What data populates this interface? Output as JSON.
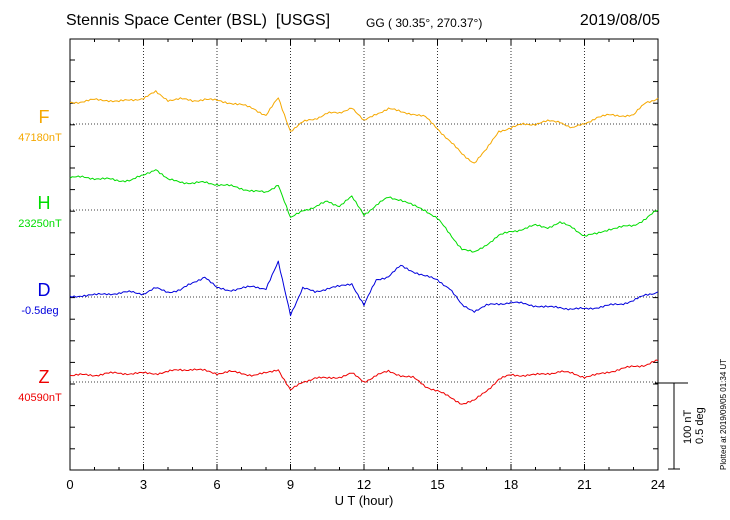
{
  "header": {
    "station": "Stennis Space Center (BSL)",
    "agency": "[USGS]",
    "coords": "GG ( 30.35°, 270.37°)",
    "date": "2019/08/05"
  },
  "footer": {
    "plotted": "Plotted at 2019/09/05 01:34 UT"
  },
  "chart_data": {
    "type": "line",
    "xlabel": "U T (hour)",
    "xlim": [
      0,
      24
    ],
    "x_ticks": [
      "0",
      "3",
      "6",
      "9",
      "12",
      "15",
      "18",
      "21",
      "24"
    ],
    "scale": {
      "nT": "100 nT",
      "deg": "0.5 deg"
    },
    "x": [
      0,
      0.5,
      1,
      1.5,
      2,
      2.5,
      3,
      3.5,
      4,
      4.5,
      5,
      5.5,
      6,
      6.5,
      7,
      7.5,
      8,
      8.5,
      9,
      9.5,
      10,
      10.5,
      11,
      11.5,
      12,
      12.5,
      13,
      13.5,
      14,
      14.5,
      15,
      15.5,
      16,
      16.5,
      17,
      17.5,
      18,
      18.5,
      19,
      19.5,
      20,
      20.5,
      21,
      21.5,
      22,
      22.5,
      23,
      23.5,
      24
    ],
    "series": [
      {
        "name": "F",
        "baseline": "47180nT",
        "color": "#f5a800",
        "values": [
          25,
          26,
          28,
          28,
          26,
          28,
          30,
          37,
          28,
          29,
          27,
          29,
          27,
          25,
          22,
          18,
          10,
          30,
          -8,
          2,
          6,
          13,
          12,
          20,
          3,
          12,
          18,
          14,
          12,
          8,
          -5,
          -20,
          -35,
          -45,
          -30,
          -8,
          -5,
          0,
          0,
          3,
          3,
          -5,
          0,
          8,
          10,
          10,
          10,
          25,
          30
        ]
      },
      {
        "name": "H",
        "baseline": "23250nT",
        "color": "#00dd00",
        "values": [
          38,
          38,
          37,
          36,
          34,
          35,
          40,
          48,
          35,
          33,
          31,
          32,
          30,
          28,
          25,
          22,
          20,
          30,
          -10,
          0,
          3,
          10,
          5,
          15,
          -5,
          5,
          15,
          12,
          5,
          0,
          -10,
          -28,
          -45,
          -50,
          -40,
          -30,
          -25,
          -22,
          -18,
          -20,
          -15,
          -20,
          -30,
          -28,
          -22,
          -20,
          -18,
          -10,
          0
        ]
      },
      {
        "name": "D",
        "unit": "deg",
        "baseline": "-0.5deg",
        "color": "#0000dd",
        "values": [
          0,
          0.01,
          0.01,
          0.02,
          0.02,
          0.03,
          0.02,
          0.05,
          0.03,
          0.04,
          0.08,
          0.12,
          0.05,
          0.04,
          0.05,
          0.06,
          0.05,
          0.2,
          -0.1,
          0.05,
          0.03,
          0.05,
          0.06,
          0.08,
          -0.05,
          0.1,
          0.12,
          0.18,
          0.15,
          0.12,
          0.1,
          0.05,
          -0.05,
          -0.08,
          -0.05,
          -0.04,
          -0.03,
          -0.04,
          -0.05,
          -0.06,
          -0.06,
          -0.07,
          -0.07,
          -0.06,
          -0.05,
          -0.04,
          -0.02,
          0.01,
          0.03
        ]
      },
      {
        "name": "Z",
        "baseline": "40590nT",
        "color": "#ee0000",
        "values": [
          8,
          8,
          8,
          10,
          10,
          10,
          10,
          10,
          12,
          14,
          15,
          13,
          10,
          12,
          10,
          8,
          10,
          15,
          -10,
          0,
          5,
          4,
          6,
          10,
          0,
          8,
          12,
          8,
          5,
          -5,
          -10,
          -18,
          -25,
          -22,
          -10,
          3,
          8,
          8,
          8,
          10,
          12,
          10,
          6,
          8,
          12,
          15,
          18,
          20,
          25
        ]
      }
    ]
  }
}
